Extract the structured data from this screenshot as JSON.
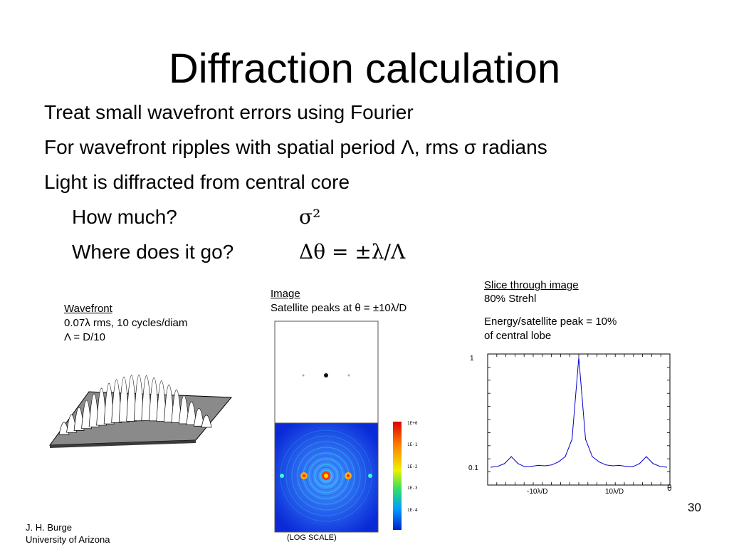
{
  "slide": {
    "title": "Diffraction calculation",
    "bullets": [
      "Treat small wavefront errors using Fourier",
      "For wavefront ripples with spatial period Λ, rms σ radians",
      "Light is diffracted from central core"
    ],
    "subbullets": [
      {
        "label": "How much?",
        "value": "σ²"
      },
      {
        "label": "Where does it go?",
        "value": "Δθ = ±λ/Λ"
      }
    ]
  },
  "wavefront_panel": {
    "heading": "Wavefront",
    "line1": "0.07λ rms, 10 cycles/diam",
    "line2": "Λ = D/10"
  },
  "image_panel": {
    "heading": "Image",
    "line1": "Satellite peaks at θ = ±10λ/D",
    "colorbar_ticks": [
      "1E+0",
      "1E-1",
      "1E-2",
      "1E-3",
      "1E-4"
    ],
    "scale_note": "(LOG SCALE)"
  },
  "slice_panel": {
    "heading": "Slice through image",
    "line1": "80% Strehl",
    "line2": "Energy/satellite peak = 10%",
    "line3": "of central lobe"
  },
  "chart_data": {
    "type": "line",
    "ytick_labels": [
      "1",
      "0.1"
    ],
    "xtick_labels": [
      "-10λ/D",
      "10λ/D"
    ],
    "xlabel": "θ",
    "x": [
      -13,
      -12,
      -11,
      -10,
      -9,
      -8,
      -7,
      -6,
      -5,
      -4,
      -3,
      -2,
      -1,
      0,
      1,
      2,
      3,
      4,
      5,
      6,
      7,
      8,
      9,
      10,
      11,
      12,
      13
    ],
    "y": [
      0.1,
      0.102,
      0.108,
      0.125,
      0.108,
      0.101,
      0.102,
      0.104,
      0.103,
      0.105,
      0.112,
      0.125,
      0.18,
      1.0,
      0.18,
      0.125,
      0.112,
      0.105,
      0.103,
      0.104,
      0.102,
      0.101,
      0.108,
      0.125,
      0.108,
      0.102,
      0.1
    ]
  },
  "footer": {
    "author": "J. H. Burge",
    "affiliation": "University of Arizona",
    "page": "30"
  }
}
